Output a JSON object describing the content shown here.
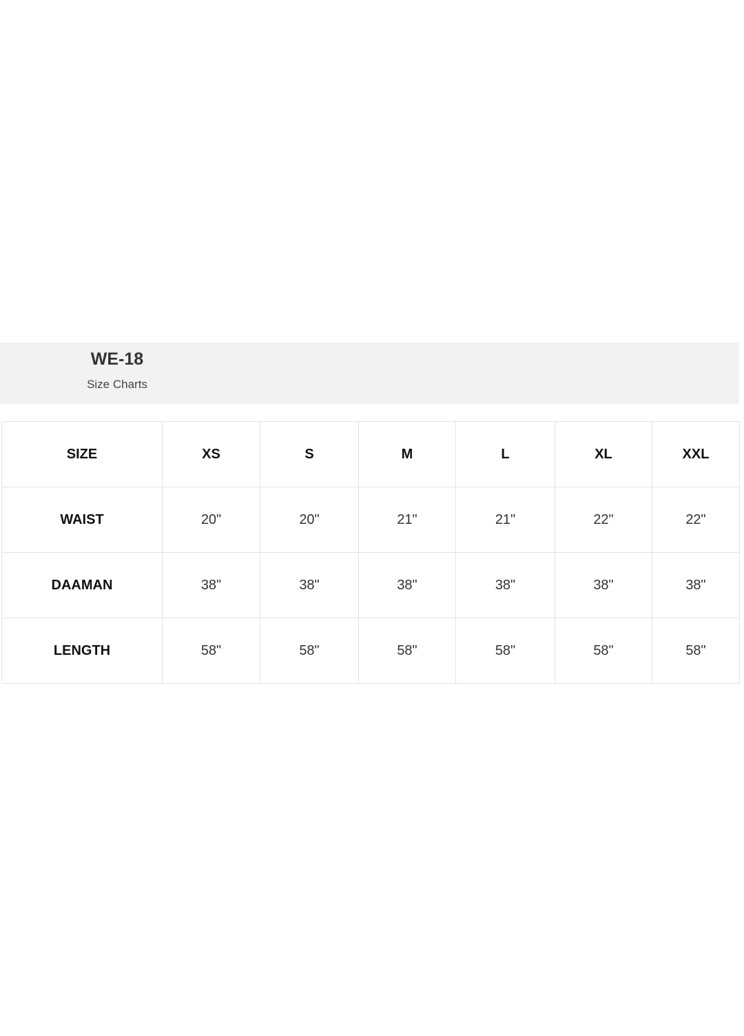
{
  "header": {
    "title": "WE-18",
    "subtitle": "Size Charts"
  },
  "table": {
    "columns": [
      "SIZE",
      "XS",
      "S",
      "M",
      "L",
      "XL",
      "XXL"
    ],
    "rows": [
      {
        "label": "WAIST",
        "values": [
          "20\"",
          "20\"",
          "21\"",
          "21\"",
          "22\"",
          "22\""
        ]
      },
      {
        "label": "DAAMAN",
        "values": [
          "38\"",
          "38\"",
          "38\"",
          "38\"",
          "38\"",
          "38\""
        ]
      },
      {
        "label": "LENGTH",
        "values": [
          "58\"",
          "58\"",
          "58\"",
          "58\"",
          "58\"",
          "58\""
        ]
      }
    ]
  }
}
